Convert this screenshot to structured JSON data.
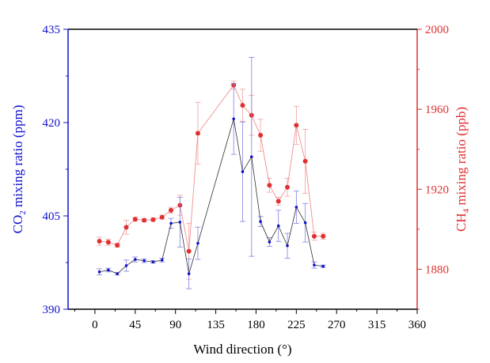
{
  "chart_data": {
    "type": "line",
    "xlabel": "Wind direction (°)",
    "xlim": [
      -30,
      360
    ],
    "x_ticks": [
      0,
      45,
      90,
      135,
      180,
      225,
      270,
      315,
      360
    ],
    "x_tick_labels": [
      "0",
      "45",
      "90",
      "135",
      "180",
      "225",
      "270",
      "315",
      "360"
    ],
    "y_left": {
      "label_main": "CO",
      "label_sub": "2",
      "label_rest": " mixing ratio (ppm)",
      "ylim": [
        390,
        435
      ],
      "ticks": [
        390,
        405,
        420,
        435
      ],
      "tick_labels": [
        "390",
        "405",
        "420",
        "435"
      ],
      "color": "#1010d0"
    },
    "y_right": {
      "label_main": "CH",
      "label_sub": "4",
      "label_rest": " mixing ratio (ppb)",
      "ylim": [
        1860,
        2000
      ],
      "ticks": [
        1880,
        1920,
        1960,
        2000
      ],
      "tick_labels": [
        "1880",
        "1920",
        "1960",
        "2000"
      ],
      "color": "#e03030"
    },
    "series": [
      {
        "name": "CO2",
        "axis": "left",
        "line_color": "#303030",
        "marker_color": "#1010d0",
        "x": [
          5,
          15,
          25,
          35,
          45,
          55,
          65,
          75,
          85,
          95,
          105,
          115,
          155,
          165,
          175,
          185,
          195,
          205,
          215,
          225,
          235,
          245,
          255
        ],
        "values": [
          396.0,
          396.3,
          395.7,
          397.0,
          398.0,
          397.8,
          397.6,
          397.9,
          403.8,
          404.0,
          395.7,
          400.6,
          420.6,
          412.1,
          414.5,
          404.1,
          400.8,
          403.4,
          400.2,
          406.4,
          403.9,
          397.1,
          396.9
        ],
        "errors": [
          0.5,
          0.3,
          0.2,
          0.9,
          0.4,
          0.3,
          0.2,
          0.3,
          0.8,
          4.0,
          2.4,
          2.6,
          5.7,
          8.0,
          16.0,
          0.8,
          0.7,
          2.5,
          2.0,
          2.6,
          3.1,
          0.5,
          0.2
        ]
      },
      {
        "name": "CH4",
        "axis": "right",
        "line_color": "#f09090",
        "marker_color": "#e03030",
        "x": [
          5,
          15,
          25,
          35,
          45,
          55,
          65,
          75,
          85,
          95,
          105,
          115,
          155,
          165,
          175,
          185,
          195,
          205,
          215,
          225,
          235,
          245,
          255
        ],
        "values": [
          1894.0,
          1893.5,
          1892.0,
          1901.0,
          1905.0,
          1904.5,
          1904.8,
          1906.0,
          1909.5,
          1912.0,
          1889.0,
          1948.0,
          1972.0,
          1962.0,
          1957.0,
          1947.0,
          1922.0,
          1914.0,
          1921.0,
          1952.0,
          1934.0,
          1896.5,
          1896.5
        ]
      }
    ],
    "ch4_errors": [
      2.0,
      1.5,
      1.0,
      3.5,
      1.0,
      0.8,
      0.8,
      1.0,
      1.5,
      5.0,
      14.0,
      15.5,
      2.0,
      8.0,
      10.0,
      8.0,
      3.5,
      2.0,
      4.5,
      9.5,
      16.0,
      2.0,
      1.5
    ]
  }
}
